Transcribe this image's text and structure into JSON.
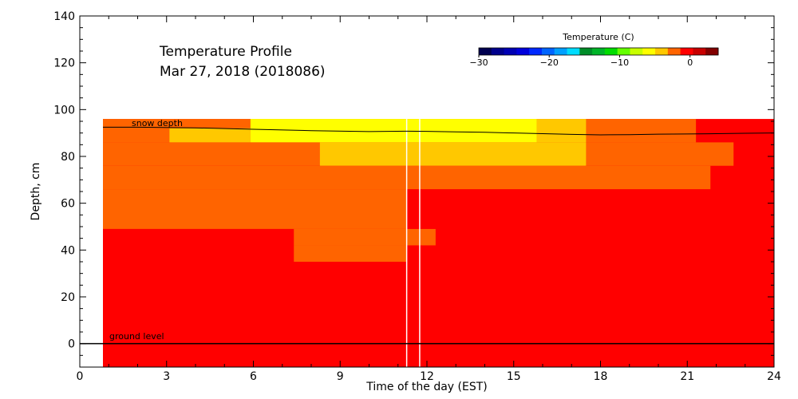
{
  "chart_data": {
    "type": "heatmap",
    "title": "Temperature Profile",
    "subtitle": "Mar 27, 2018 (2018086)",
    "xlabel": "Time of the day (EST)",
    "ylabel": "Depth, cm",
    "xlim": [
      0,
      24
    ],
    "ylim": [
      -10,
      140
    ],
    "x_ticks": [
      0,
      3,
      6,
      9,
      12,
      15,
      18,
      21,
      24
    ],
    "y_ticks": [
      0,
      20,
      40,
      60,
      80,
      100,
      120,
      140
    ],
    "colorbar": {
      "title": "Temperature (C)",
      "range": [
        -30,
        4
      ],
      "ticks": [
        -30,
        -20,
        -10,
        0
      ],
      "tick_labels": [
        "−30",
        "−20",
        "−10",
        "0"
      ],
      "colors": [
        "#000050",
        "#00008c",
        "#0000b4",
        "#0000dc",
        "#0028ff",
        "#0064ff",
        "#00a0ff",
        "#00dcff",
        "#008c28",
        "#00b428",
        "#00dc00",
        "#64ff00",
        "#c8ff00",
        "#ffff00",
        "#ffc800",
        "#ff6400",
        "#ff0000",
        "#c80000",
        "#820000"
      ]
    },
    "heatmap_cells": [
      {
        "t0": 0.8,
        "t1": 24,
        "z0": -10,
        "z1": 96,
        "color": "#ff0000"
      },
      {
        "t0": 0.8,
        "t1": 21.3,
        "z0": 86,
        "z1": 96,
        "color": "#ff6400"
      },
      {
        "t0": 3.1,
        "t1": 5.9,
        "z0": 86,
        "z1": 92,
        "color": "#ffc800"
      },
      {
        "t0": 5.9,
        "t1": 15.8,
        "z0": 86,
        "z1": 96,
        "color": "#ffff00"
      },
      {
        "t0": 15.8,
        "t1": 17.5,
        "z0": 86,
        "z1": 96,
        "color": "#ffc800"
      },
      {
        "t0": 0.8,
        "t1": 22.6,
        "z0": 76,
        "z1": 86,
        "color": "#ff6400"
      },
      {
        "t0": 8.3,
        "t1": 17.5,
        "z0": 76,
        "z1": 86,
        "color": "#ffc800"
      },
      {
        "t0": 0.8,
        "t1": 11.3,
        "z0": 66,
        "z1": 76,
        "color": "#ff6400"
      },
      {
        "t0": 11.3,
        "t1": 21.8,
        "z0": 66,
        "z1": 76,
        "color": "#ff6400"
      },
      {
        "t0": 0.8,
        "t1": 11.3,
        "z0": 49,
        "z1": 66,
        "color": "#ff6400"
      },
      {
        "t0": 0.8,
        "t1": 7.4,
        "z0": 42,
        "z1": 49,
        "color": "#ff0000"
      },
      {
        "t0": 7.4,
        "t1": 11.3,
        "z0": 42,
        "z1": 49,
        "color": "#ff6400"
      },
      {
        "t0": 11.3,
        "t1": 12.3,
        "z0": 42,
        "z1": 49,
        "color": "#ff6400"
      },
      {
        "t0": 0.8,
        "t1": 7.4,
        "z0": 35,
        "z1": 42,
        "color": "#ff0000"
      },
      {
        "t0": 7.4,
        "t1": 11.3,
        "z0": 35,
        "z1": 42,
        "color": "#ff6400"
      }
    ],
    "snow_depth": {
      "label": "snow depth",
      "x": [
        0.8,
        2,
        4,
        6,
        8,
        10,
        11.3,
        12,
        13,
        14,
        15,
        16,
        17,
        18,
        19,
        20,
        21,
        22,
        23,
        24
      ],
      "y": [
        92.5,
        92.5,
        92.2,
        91.6,
        91.0,
        90.6,
        90.8,
        90.7,
        90.5,
        90.3,
        90.0,
        89.7,
        89.4,
        89.2,
        89.3,
        89.5,
        89.6,
        89.7,
        89.9,
        90.0
      ]
    },
    "ground_level": {
      "label": "ground level",
      "y": 0
    },
    "data_gaps": [
      11.3,
      11.75
    ],
    "grid": false
  }
}
